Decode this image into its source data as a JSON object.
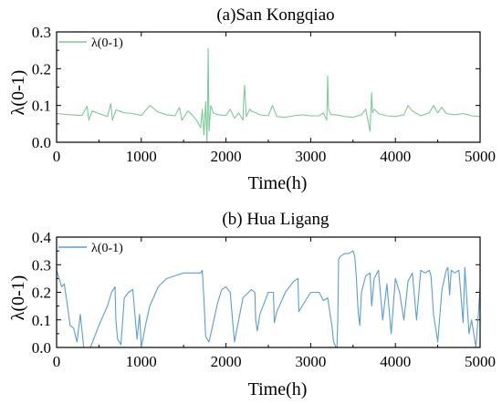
{
  "chart_data": [
    {
      "type": "line",
      "title": "(a)San Kongqiao",
      "xlabel": "Time(h)",
      "ylabel": "λ(0-1)",
      "xlim": [
        0,
        5000
      ],
      "ylim": [
        0,
        0.3
      ],
      "xticks": [
        "0",
        "1000",
        "2000",
        "3000",
        "4000",
        "5000"
      ],
      "yticks": [
        "0.0",
        "0.1",
        "0.2",
        "0.3"
      ],
      "legend": "top-left",
      "color": "#7ccb96",
      "series": [
        {
          "name": "λ(0-1)",
          "x": [
            0,
            150,
            300,
            360,
            380,
            420,
            500,
            600,
            640,
            660,
            700,
            800,
            900,
            1000,
            1100,
            1200,
            1300,
            1400,
            1450,
            1480,
            1550,
            1600,
            1650,
            1700,
            1720,
            1740,
            1760,
            1775,
            1780,
            1790,
            1800,
            1820,
            1850,
            1900,
            2000,
            2050,
            2100,
            2150,
            2200,
            2210,
            2220,
            2240,
            2280,
            2300,
            2400,
            2500,
            2550,
            2600,
            2700,
            2800,
            2900,
            3000,
            3100,
            3150,
            3190,
            3200,
            3210,
            3240,
            3300,
            3400,
            3500,
            3600,
            3650,
            3700,
            3710,
            3720,
            3730,
            3750,
            3800,
            3900,
            4000,
            4100,
            4150,
            4200,
            4300,
            4400,
            4450,
            4500,
            4550,
            4600,
            4700,
            4800,
            4900,
            5000
          ],
          "values": [
            0.078,
            0.075,
            0.073,
            0.098,
            0.06,
            0.085,
            0.078,
            0.07,
            0.105,
            0.06,
            0.088,
            0.08,
            0.078,
            0.073,
            0.1,
            0.082,
            0.075,
            0.072,
            0.095,
            0.06,
            0.085,
            0.075,
            0.06,
            0.04,
            0.09,
            0.02,
            0.11,
            0.0,
            0.06,
            0.255,
            0.03,
            0.1,
            0.08,
            0.075,
            0.073,
            0.09,
            0.065,
            0.08,
            0.06,
            0.12,
            0.155,
            0.07,
            0.09,
            0.085,
            0.075,
            0.072,
            0.1,
            0.07,
            0.068,
            0.072,
            0.075,
            0.072,
            0.072,
            0.08,
            0.06,
            0.18,
            0.09,
            0.075,
            0.075,
            0.07,
            0.068,
            0.075,
            0.09,
            0.03,
            0.085,
            0.135,
            0.08,
            0.09,
            0.078,
            0.072,
            0.07,
            0.075,
            0.1,
            0.085,
            0.072,
            0.08,
            0.1,
            0.08,
            0.095,
            0.078,
            0.075,
            0.078,
            0.072,
            0.07
          ]
        }
      ]
    },
    {
      "type": "line",
      "title": "(b) Hua Ligang",
      "xlabel": "Time(h)",
      "ylabel": "λ(0-1)",
      "xlim": [
        0,
        5000
      ],
      "ylim": [
        0,
        0.4
      ],
      "xticks": [
        "0",
        "1000",
        "2000",
        "3000",
        "4000",
        "5000"
      ],
      "yticks": [
        "0.0",
        "0.1",
        "0.2",
        "0.3",
        "0.4"
      ],
      "legend": "top-left",
      "color": "#5b9ecf",
      "series": [
        {
          "name": "λ(0-1)",
          "x": [
            0,
            30,
            60,
            90,
            120,
            160,
            200,
            240,
            280,
            320,
            400,
            500,
            600,
            650,
            690,
            700,
            720,
            760,
            800,
            850,
            900,
            930,
            950,
            980,
            1000,
            1050,
            1100,
            1200,
            1300,
            1400,
            1500,
            1600,
            1700,
            1720,
            1740,
            1760,
            1800,
            1850,
            1900,
            1950,
            2000,
            2050,
            2100,
            2200,
            2300,
            2340,
            2350,
            2370,
            2400,
            2500,
            2560,
            2570,
            2600,
            2700,
            2800,
            2850,
            2860,
            2900,
            3000,
            3100,
            3150,
            3200,
            3250,
            3270,
            3300,
            3310,
            3320,
            3330,
            3350,
            3400,
            3450,
            3500,
            3520,
            3540,
            3560,
            3580,
            3600,
            3650,
            3700,
            3720,
            3750,
            3800,
            3850,
            3900,
            3950,
            4000,
            4050,
            4100,
            4150,
            4200,
            4250,
            4300,
            4350,
            4400,
            4420,
            4450,
            4500,
            4550,
            4600,
            4620,
            4640,
            4660,
            4700,
            4750,
            4800,
            4820,
            4850,
            4870,
            4900,
            4950,
            4980,
            5000
          ],
          "values": [
            0.28,
            0.25,
            0.22,
            0.23,
            0.17,
            0.08,
            0.07,
            0.02,
            0.12,
            0.0,
            0.0,
            0.08,
            0.15,
            0.2,
            0.22,
            0.1,
            0.03,
            0.01,
            0.18,
            0.2,
            0.21,
            0.1,
            0.03,
            0.12,
            0.0,
            0.08,
            0.15,
            0.22,
            0.25,
            0.26,
            0.27,
            0.27,
            0.27,
            0.28,
            0.17,
            0.04,
            0.02,
            0.09,
            0.16,
            0.21,
            0.22,
            0.2,
            0.02,
            0.18,
            0.21,
            0.2,
            0.1,
            0.06,
            0.12,
            0.2,
            0.2,
            0.09,
            0.13,
            0.2,
            0.24,
            0.25,
            0.13,
            0.15,
            0.2,
            0.2,
            0.17,
            0.18,
            0.08,
            0.02,
            0.0,
            0.0,
            0.1,
            0.32,
            0.33,
            0.34,
            0.34,
            0.35,
            0.33,
            0.25,
            0.13,
            0.08,
            0.2,
            0.26,
            0.27,
            0.15,
            0.25,
            0.28,
            0.1,
            0.23,
            0.05,
            0.25,
            0.2,
            0.1,
            0.24,
            0.27,
            0.1,
            0.28,
            0.27,
            0.28,
            0.26,
            0.12,
            0.02,
            0.21,
            0.28,
            0.29,
            0.19,
            0.28,
            0.27,
            0.28,
            0.09,
            0.29,
            0.14,
            0.05,
            0.1,
            0.0,
            0.12,
            0.22
          ]
        }
      ]
    }
  ]
}
